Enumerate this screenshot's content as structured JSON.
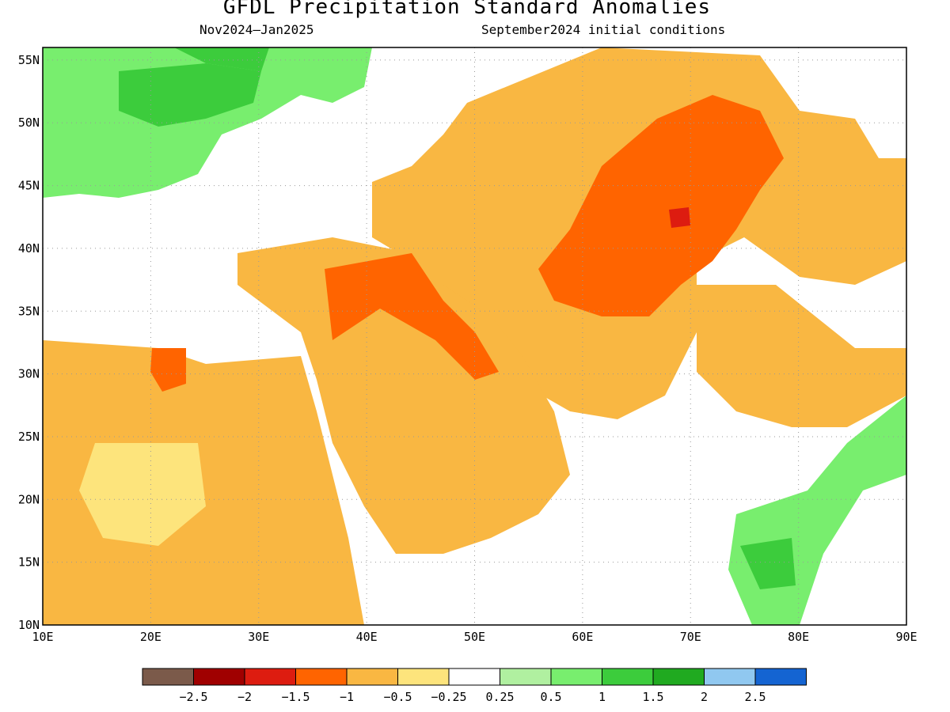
{
  "title": "GFDL Precipitation Standard Anomalies",
  "period": "Nov2024—Jan2025",
  "init": "September2024 initial conditions",
  "lon_ticks": [
    "10E",
    "20E",
    "30E",
    "40E",
    "50E",
    "60E",
    "70E",
    "80E",
    "90E"
  ],
  "lat_ticks": [
    "55N",
    "50N",
    "45N",
    "40N",
    "35N",
    "30N",
    "25N",
    "20N",
    "15N",
    "10N"
  ],
  "extent": {
    "lon": [
      10,
      90
    ],
    "lat": [
      10,
      56
    ]
  },
  "legend": {
    "colors": [
      "#7b5a4a",
      "#a00000",
      "#dd1c10",
      "#ff6400",
      "#f9b742",
      "#fde47c",
      "#ffffff",
      "#b0f0a0",
      "#78ee6e",
      "#3ccc3c",
      "#20aa20",
      "#90c8f0",
      "#1464d2"
    ],
    "labels": [
      "−2.5",
      "−2",
      "−1.5",
      "−1",
      "−0.5",
      "−0.25",
      "0.25",
      "0.5",
      "1",
      "1.5",
      "2",
      "2.5"
    ]
  }
}
